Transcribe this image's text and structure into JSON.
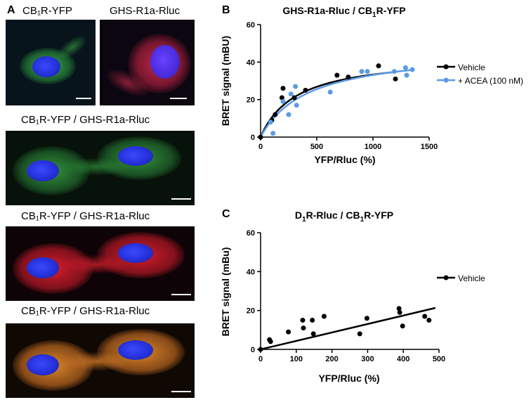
{
  "panels": {
    "a_letter": "A",
    "b_letter": "B",
    "c_letter": "C"
  },
  "micrographs": [
    {
      "label": "CB₁R-YFP",
      "channel": "green"
    },
    {
      "label": "GHS-R1a-Rluc",
      "channel": "red"
    },
    {
      "label": "CB₁R-YFP / GHS-R1a-Rluc",
      "channel": "green"
    },
    {
      "label": "CB₁R-YFP / GHS-R1a-Rluc",
      "channel": "red"
    },
    {
      "label": "CB₁R-YFP / GHS-R1a-Rluc",
      "channel": "merge"
    }
  ],
  "colors": {
    "vehicle": "#000000",
    "acea": "#5b9be6",
    "green_channel": "#2fa84a",
    "red_channel": "#d42a3a",
    "merge_channel": "#e08a2a",
    "nucleus": "#2430d8"
  },
  "chart_data": [
    {
      "id": "B",
      "type": "scatter",
      "title_main": "GHS-R1a-Rluc / CB",
      "title_sub": "1",
      "title_end": "R-YFP",
      "xlabel": "YFP/Rluc (%)",
      "ylabel": "BRET signal (mBU)",
      "xlim": [
        0,
        1500
      ],
      "ylim": [
        0,
        60
      ],
      "xticks": [
        0,
        500,
        1000,
        1500
      ],
      "yticks": [
        0,
        20,
        40,
        60
      ],
      "legend_position": "right",
      "series": [
        {
          "name": "Vehicle",
          "color": "#000000",
          "fit": "hyperbola",
          "bmax": 44,
          "k": 320,
          "points": [
            [
              0,
              0
            ],
            [
              100,
              9
            ],
            [
              130,
              12
            ],
            [
              190,
              21
            ],
            [
              200,
              26
            ],
            [
              300,
              21
            ],
            [
              400,
              25
            ],
            [
              680,
              33
            ],
            [
              780,
              32
            ],
            [
              1050,
              38
            ],
            [
              1200,
              31
            ]
          ]
        },
        {
          "name": "+ ACEA (100 nM)",
          "color": "#5b9be6",
          "fit": "hyperbola",
          "bmax": 47,
          "k": 420,
          "points": [
            [
              90,
              8
            ],
            [
              110,
              2
            ],
            [
              200,
              19
            ],
            [
              250,
              12
            ],
            [
              270,
              23
            ],
            [
              310,
              27
            ],
            [
              320,
              17
            ],
            [
              620,
              24
            ],
            [
              900,
              35
            ],
            [
              950,
              35
            ],
            [
              1190,
              35
            ],
            [
              1290,
              37
            ],
            [
              1300,
              33
            ],
            [
              1350,
              36
            ]
          ]
        }
      ]
    },
    {
      "id": "C",
      "type": "scatter",
      "title_main": "D",
      "title_sub": "1",
      "title_mid": "R-Rluc / CB",
      "title_sub2": "1",
      "title_end": "R-YFP",
      "xlabel": "YFP/Rluc (%)",
      "ylabel": "BRET signal (mBu)",
      "xlim": [
        0,
        500
      ],
      "ylim": [
        0,
        60
      ],
      "xticks": [
        0,
        100,
        200,
        300,
        400,
        500
      ],
      "yticks": [
        0,
        20,
        40,
        60
      ],
      "legend_position": "right",
      "series": [
        {
          "name": "Vehicle",
          "color": "#000000",
          "fit": "linear",
          "slope": 0.0435,
          "intercept": 0,
          "fit_xmax": 490,
          "points": [
            [
              0,
              0
            ],
            [
              25,
              5
            ],
            [
              28,
              4
            ],
            [
              78,
              9
            ],
            [
              118,
              15
            ],
            [
              120,
              11
            ],
            [
              145,
              15
            ],
            [
              148,
              8
            ],
            [
              178,
              17
            ],
            [
              278,
              8
            ],
            [
              298,
              16
            ],
            [
              388,
              21
            ],
            [
              390,
              19
            ],
            [
              398,
              12
            ],
            [
              460,
              17
            ],
            [
              472,
              15
            ]
          ]
        }
      ]
    }
  ]
}
